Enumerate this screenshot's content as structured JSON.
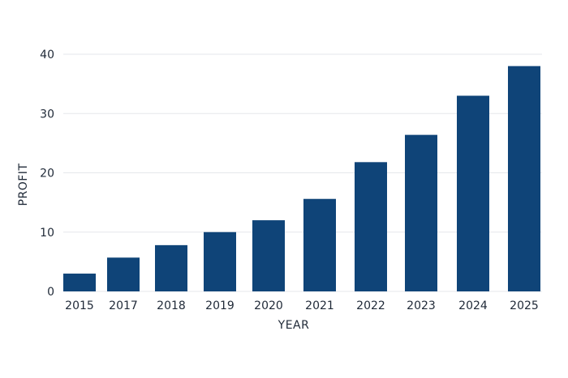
{
  "chart_data": {
    "type": "bar",
    "categories": [
      "2015",
      "2017",
      "2018",
      "2019",
      "2020",
      "2021",
      "2022",
      "2023",
      "2024",
      "2025"
    ],
    "values": [
      3,
      5.7,
      7.8,
      10,
      12,
      15.6,
      21.8,
      26.4,
      33,
      38
    ],
    "xlabel": "YEAR",
    "ylabel": "PROFIT",
    "ylim": [
      0,
      40
    ],
    "yticks": [
      0,
      10,
      20,
      30,
      40
    ],
    "grid": true,
    "legend": "none",
    "colors": {
      "bar": "#0f4478",
      "grid": "#e5e7eb",
      "text": "#1f2937"
    }
  }
}
